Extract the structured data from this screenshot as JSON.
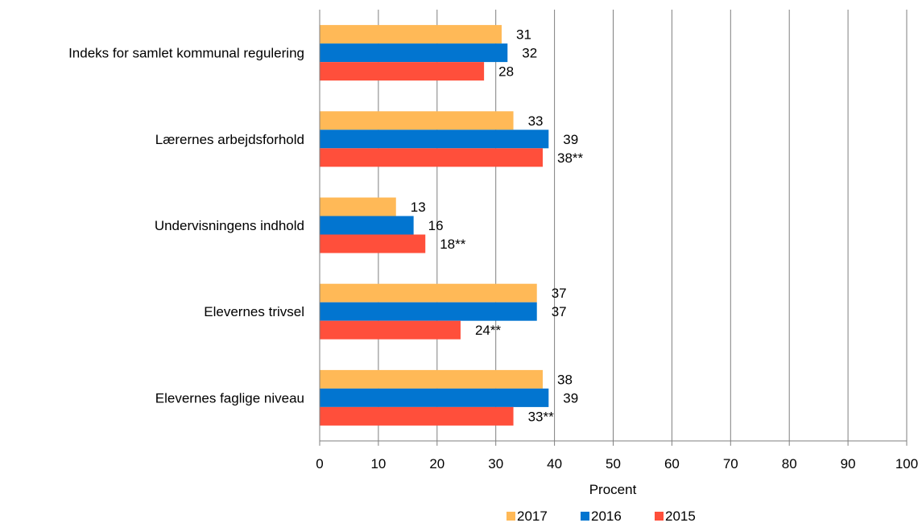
{
  "chart_data": {
    "type": "bar",
    "orientation": "horizontal",
    "categories": [
      "Indeks for samlet kommunal regulering",
      "Lærernes arbejdsforhold",
      "Undervisningens indhold",
      "Elevernes trivsel",
      "Elevernes faglige niveau"
    ],
    "series": [
      {
        "name": "2017",
        "color": "#FFB957",
        "values": [
          31,
          33,
          13,
          37,
          38
        ],
        "labels": [
          "31",
          "33",
          "13",
          "37",
          "38"
        ]
      },
      {
        "name": "2016",
        "color": "#0275D0",
        "values": [
          32,
          39,
          16,
          37,
          39
        ],
        "labels": [
          "32",
          "39",
          "16",
          "37",
          "39"
        ]
      },
      {
        "name": "2015",
        "color": "#FF4F3B",
        "values": [
          28,
          38,
          18,
          24,
          33
        ],
        "labels": [
          "28",
          "38**",
          "18**",
          "24**",
          "33**"
        ]
      }
    ],
    "xlabel": "Procent",
    "ylabel": "",
    "xlim": [
      0,
      100
    ],
    "xticks": [
      0,
      10,
      20,
      30,
      40,
      50,
      60,
      70,
      80,
      90,
      100
    ],
    "grid": "vertical",
    "legend": "bottom"
  }
}
